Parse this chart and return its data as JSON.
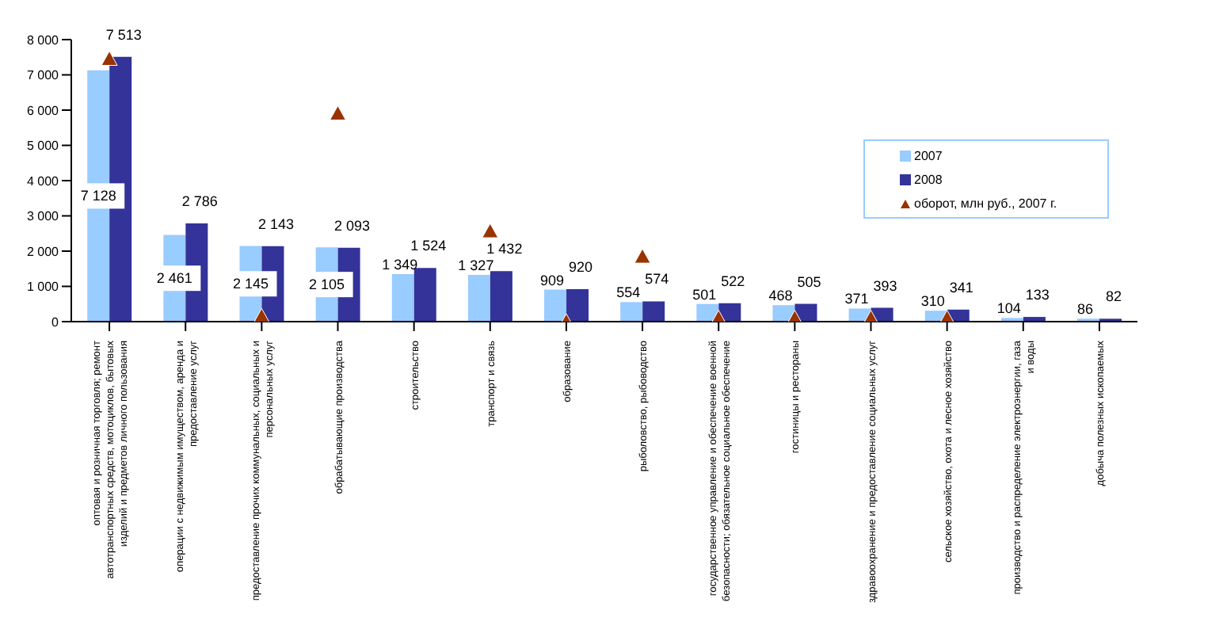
{
  "chart_data": {
    "type": "bar",
    "categories": [
      "оптовая и розничная торговля; ремонт автотранспортных средств, мотоциклов, бытовых изделий и предметов личного пользования",
      "операции с недвижимым имуществом, аренда и предоставление услуг",
      "предоставление прочих коммунальных, социальных и персональных услуг",
      "обрабатывающие производства",
      "строительство",
      "транспорт и связь",
      "образование",
      "рыболовство, рыбоводство",
      "государственное управление и обеспечение военной безопасности; обязательное социальное обеспечение",
      "гостиницы и рестораны",
      "здравоохранение и предоставление социальных услуг",
      "сельское хозяйство, охота и лесное хозяйство",
      "производство и распределение электроэнергии, газа и воды",
      "добыча полезных ископаемых"
    ],
    "series": [
      {
        "name": "2007",
        "color": "#99ccff",
        "values": [
          7128,
          2461,
          2145,
          2105,
          1349,
          1327,
          909,
          554,
          501,
          468,
          371,
          310,
          104,
          86
        ],
        "value_labels": [
          "7 128",
          "2 461",
          "2 145",
          "2 105",
          "1 349",
          "1 327",
          "909",
          "554",
          "501",
          "468",
          "371",
          "310",
          "104",
          "86"
        ]
      },
      {
        "name": "2008",
        "color": "#333399",
        "values": [
          7513,
          2786,
          2143,
          2093,
          1524,
          1432,
          920,
          574,
          522,
          505,
          393,
          341,
          133,
          82
        ],
        "value_labels": [
          "7 513",
          "2 786",
          "2 143",
          "2 093",
          "1 524",
          "1 432",
          "920",
          "574",
          "522",
          "505",
          "393",
          "341",
          "133",
          "82"
        ]
      },
      {
        "name": "оборот, млн руб., 2007 г.",
        "type": "scatter",
        "color": "#993300",
        "values": [
          7450,
          null,
          150,
          5900,
          null,
          2560,
          0,
          1840,
          100,
          100,
          100,
          100,
          null,
          null
        ]
      }
    ],
    "ylim": [
      0,
      8000
    ],
    "yticks": [
      {
        "value": 0,
        "label": "0"
      },
      {
        "value": 1000,
        "label": "1 000"
      },
      {
        "value": 2000,
        "label": "2 000"
      },
      {
        "value": 3000,
        "label": "3 000"
      },
      {
        "value": 4000,
        "label": "4 000"
      },
      {
        "value": 5000,
        "label": "5 000"
      },
      {
        "value": 6000,
        "label": "6 000"
      },
      {
        "value": 7000,
        "label": "7 000"
      },
      {
        "value": 8000,
        "label": "8 000"
      }
    ],
    "grid": false,
    "legend": "right",
    "marker": "triangle"
  }
}
